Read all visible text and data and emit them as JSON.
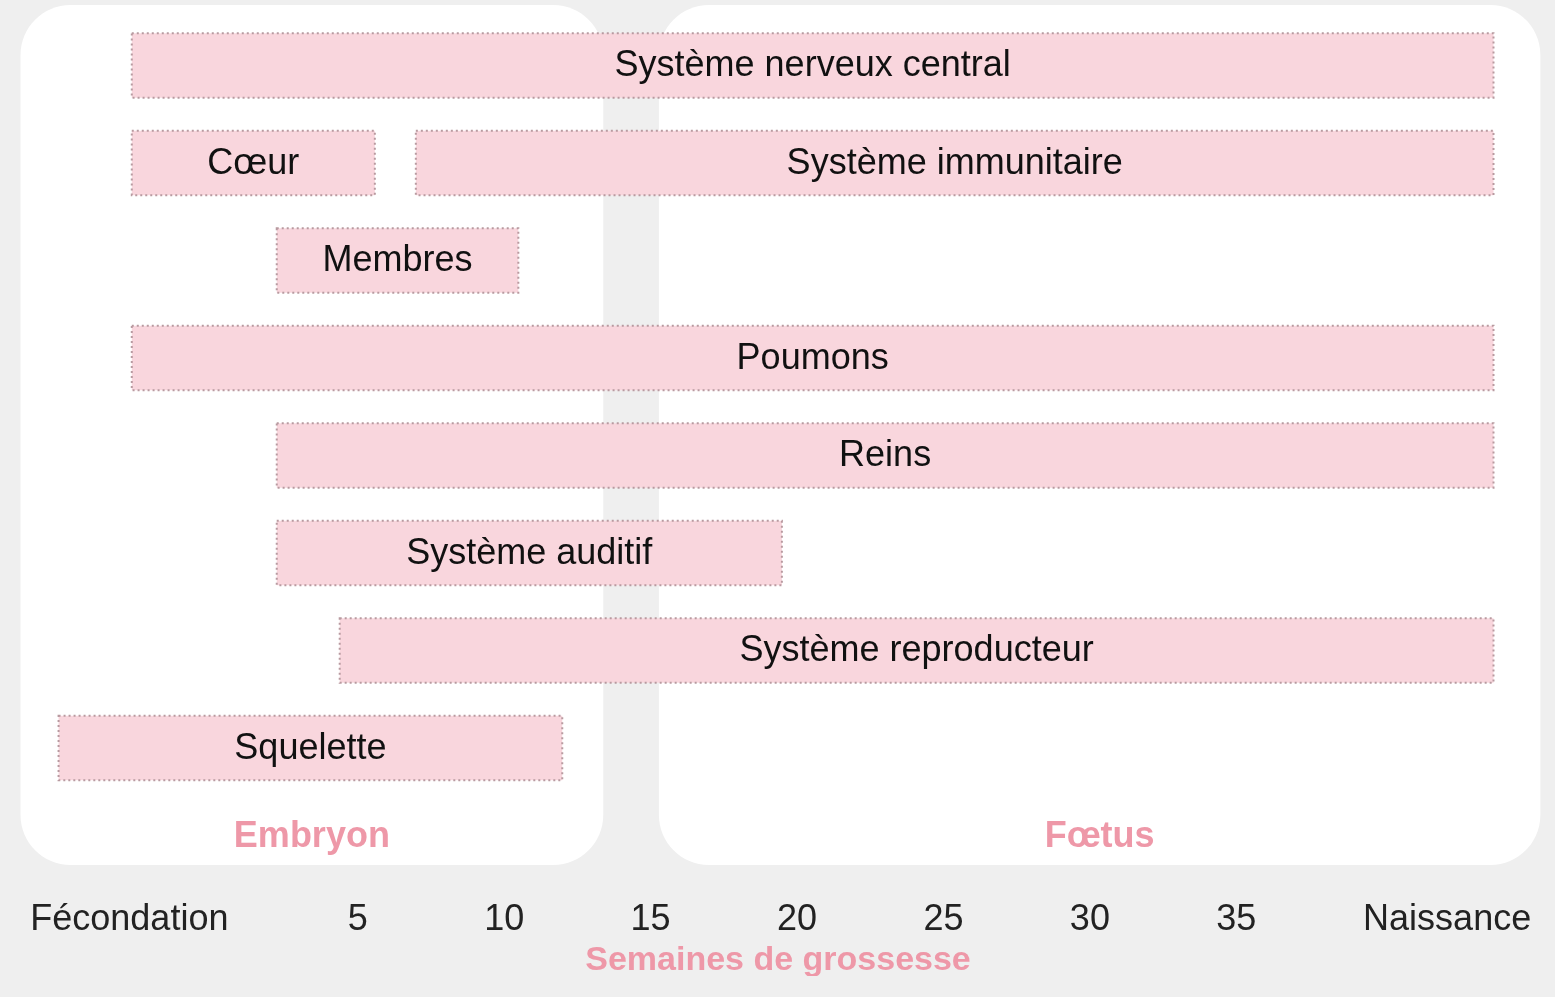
{
  "chart_data": {
    "type": "bar",
    "orientation": "horizontal",
    "categories": [
      "Système nerveux central",
      "Cœur",
      "Membres",
      "Poumons",
      "Reins",
      "Système auditif",
      "Système reproducteur",
      "Squelette"
    ],
    "series": [
      {
        "color": "#f9d6dd",
        "base": [
          -2.7,
          -2.7,
          2.25,
          -2.7,
          2.25,
          2.25,
          4.4,
          -5.2
        ],
        "values": [
          46.5,
          8.3,
          8.25,
          46.5,
          41.55,
          17.25,
          39.4,
          17.2
        ]
      },
      {
        "name": "Système immunitaire",
        "color": "#f9d6dd",
        "base": [
          null,
          7.0,
          null,
          null,
          null,
          null,
          null,
          null
        ],
        "values": [
          null,
          36.8,
          null,
          null,
          null,
          null,
          null,
          null
        ]
      }
    ],
    "xlim": [
      -7.2,
      45.9
    ],
    "xticks": [
      {
        "value": -2.8,
        "label": "Fécondation"
      },
      5,
      10,
      15,
      20,
      25,
      30,
      35,
      {
        "value": 42.2,
        "label": "Naissance"
      }
    ],
    "xlabel": "Semaines de grossesse",
    "bands": [
      {
        "axis": "x",
        "from": -6.5,
        "to": 13.4,
        "label": "Embryon",
        "color": "#ffffff"
      },
      {
        "axis": "x",
        "from": 15.3,
        "to": 45.4,
        "label": "Fœtus",
        "color": "#ffffff"
      }
    ],
    "grid": false
  }
}
